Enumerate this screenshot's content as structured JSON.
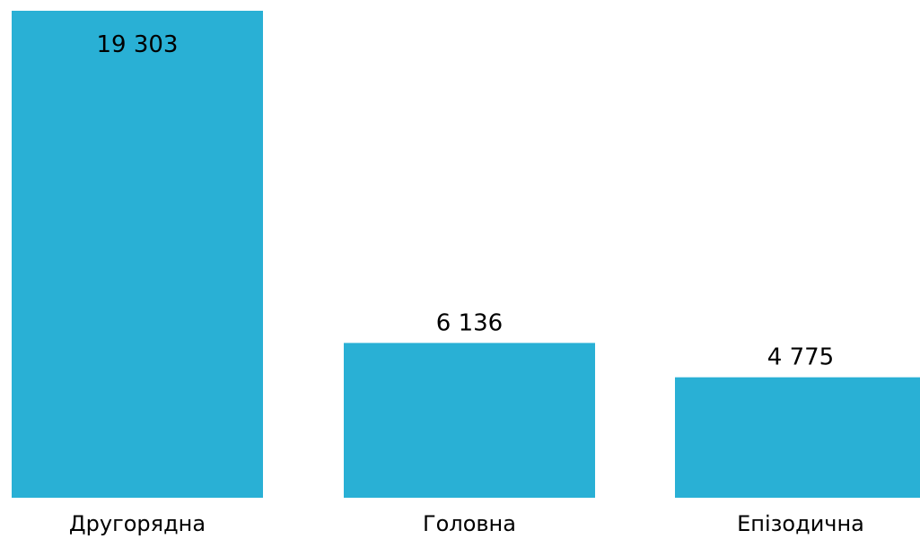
{
  "chart_data": {
    "type": "bar",
    "categories": [
      "Другорядна",
      "Головна",
      "Епізодична"
    ],
    "values": [
      19303,
      6136,
      4775
    ],
    "value_labels": [
      "19 303",
      "6 136",
      "4 775"
    ],
    "title": "",
    "xlabel": "",
    "ylabel": "",
    "ylim": [
      0,
      19303
    ],
    "grid": false,
    "legend": "none",
    "bar_color": "#29B0D5"
  }
}
